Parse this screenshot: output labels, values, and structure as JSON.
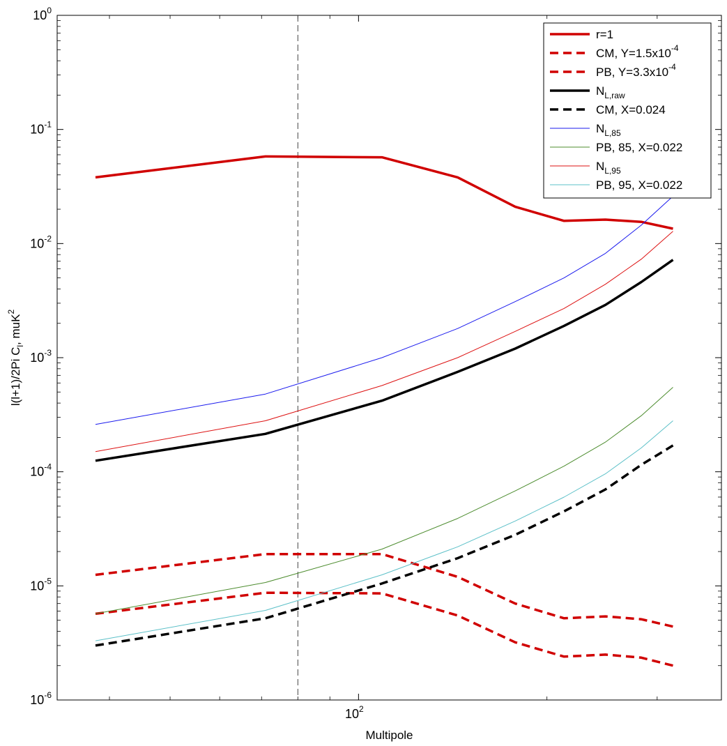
{
  "chart_data": {
    "type": "line",
    "xlabel": "Multipole",
    "ylabel_parts": {
      "a": "l(l+1)/2Pi C",
      "a_sub": "l",
      "b": ", muK",
      "b_sup": "2"
    },
    "x_scale": "log",
    "y_scale": "log",
    "xlim": [
      33,
      380
    ],
    "ylim": [
      1e-06,
      1
    ],
    "x_ticks": [
      {
        "value": 100,
        "base": "10",
        "exp": "2"
      }
    ],
    "y_ticks": [
      {
        "value": 1,
        "base": "10",
        "exp": "0"
      },
      {
        "value": 0.1,
        "base": "10",
        "exp": "-1"
      },
      {
        "value": 0.01,
        "base": "10",
        "exp": "-2"
      },
      {
        "value": 0.001,
        "base": "10",
        "exp": "-3"
      },
      {
        "value": 0.0001,
        "base": "10",
        "exp": "-4"
      },
      {
        "value": 1e-05,
        "base": "10",
        "exp": "-5"
      },
      {
        "value": 1e-06,
        "base": "10",
        "exp": "-6"
      }
    ],
    "vline": {
      "x": 80,
      "color": "#444444",
      "dash": "dashed"
    },
    "grid": false,
    "legend_position": "top-right",
    "x": [
      38,
      71,
      109,
      144,
      178,
      213,
      248,
      283,
      318
    ],
    "series": [
      {
        "id": "r1",
        "legend": {
          "main": "r=1"
        },
        "color": "#d00000",
        "width": 3.5,
        "dash": "solid",
        "values": [
          0.038,
          0.058,
          0.057,
          0.038,
          0.021,
          0.0158,
          0.0162,
          0.0155,
          0.0135
        ]
      },
      {
        "id": "cm-y",
        "legend": {
          "main": "CM, Y=1.5x10",
          "sup": "-4"
        },
        "color": "#d00000",
        "width": 3.5,
        "dash": "dashed",
        "values": [
          1.25e-05,
          1.9e-05,
          1.9e-05,
          1.2e-05,
          7e-06,
          5.2e-06,
          5.4e-06,
          5.1e-06,
          4.4e-06
        ]
      },
      {
        "id": "pb-y",
        "legend": {
          "main": "PB, Y=3.3x10",
          "sup": "-4"
        },
        "color": "#d00000",
        "width": 3.5,
        "dash": "dashed",
        "values": [
          5.7e-06,
          8.7e-06,
          8.6e-06,
          5.5e-06,
          3.2e-06,
          2.4e-06,
          2.5e-06,
          2.35e-06,
          2e-06
        ]
      },
      {
        "id": "nl-raw",
        "legend": {
          "main": "N",
          "sub": "L,raw"
        },
        "color": "#000000",
        "width": 3.5,
        "dash": "solid",
        "values": [
          0.000125,
          0.000215,
          0.00042,
          0.00075,
          0.0012,
          0.0019,
          0.0029,
          0.0046,
          0.0072
        ]
      },
      {
        "id": "cm-x",
        "legend": {
          "main": "CM, X=0.024"
        },
        "color": "#000000",
        "width": 3.5,
        "dash": "dashed",
        "values": [
          3e-06,
          5.2e-06,
          1.05e-05,
          1.75e-05,
          2.8e-05,
          4.5e-05,
          7e-05,
          0.000115,
          0.00017
        ]
      },
      {
        "id": "nl-85",
        "legend": {
          "main": "N",
          "sub": "L,85"
        },
        "color": "#1a1aee",
        "width": 1,
        "dash": "solid",
        "values": [
          0.00026,
          0.00048,
          0.001,
          0.0018,
          0.0031,
          0.005,
          0.0082,
          0.0145,
          0.026
        ]
      },
      {
        "id": "pb-85",
        "legend": {
          "main": "PB, 85, X=0.022"
        },
        "color": "#4c8c2e",
        "width": 1,
        "dash": "solid",
        "values": [
          5.7e-06,
          1.07e-05,
          2.1e-05,
          3.9e-05,
          6.8e-05,
          0.000112,
          0.000182,
          0.00031,
          0.00055
        ]
      },
      {
        "id": "nl-95",
        "legend": {
          "main": "N",
          "sub": "L,95"
        },
        "color": "#dd1111",
        "width": 1,
        "dash": "solid",
        "values": [
          0.00015,
          0.00028,
          0.00057,
          0.001,
          0.0017,
          0.0027,
          0.0044,
          0.0073,
          0.0128
        ]
      },
      {
        "id": "pb-95",
        "legend": {
          "main": "PB, 95, X=0.022"
        },
        "color": "#5cc0c8",
        "width": 1,
        "dash": "solid",
        "values": [
          3.3e-06,
          6.1e-06,
          1.25e-05,
          2.2e-05,
          3.7e-05,
          6e-05,
          9.6e-05,
          0.000162,
          0.00028
        ]
      }
    ]
  }
}
